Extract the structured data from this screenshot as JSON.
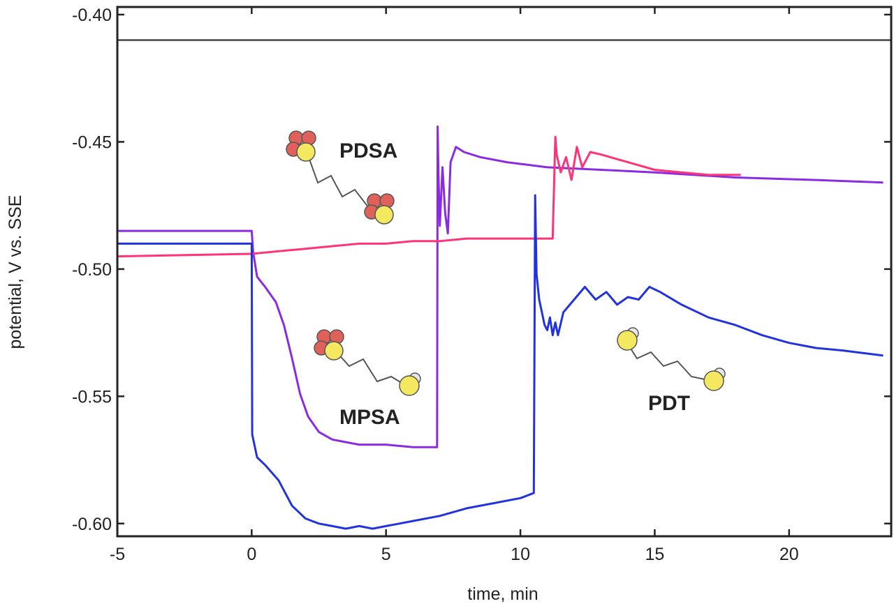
{
  "chart_data": {
    "type": "line",
    "xlabel": "time, min",
    "ylabel": "potential, V vs. SSE",
    "xlim": [
      -5,
      23.8
    ],
    "ylim": [
      -0.605,
      -0.397
    ],
    "xticks": [
      "-5",
      "0",
      "5",
      "10",
      "15",
      "20"
    ],
    "yticks": [
      "-0.40",
      "-0.45",
      "-0.50",
      "-0.55",
      "-0.60"
    ],
    "grid": false,
    "reference_line": {
      "y": -0.41,
      "color": "#444444"
    },
    "annotations": [
      "PDSA",
      "MPSA",
      "PDT"
    ],
    "colors": {
      "pdsa": "#8a2be2",
      "mpsa": "#ff3377",
      "pdt": "#2233dd",
      "sulfur": "#f3e860",
      "oxygen": "#e0605a"
    },
    "series": [
      {
        "color": "#8a2be2",
        "x": [
          -5,
          0,
          0.05,
          0.2,
          0.5,
          0.9,
          1.2,
          1.5,
          1.8,
          2.1,
          2.5,
          3,
          3.5,
          4,
          5,
          6,
          6.9,
          6.92,
          6.95,
          7.0,
          7.1,
          7.2,
          7.3,
          7.4,
          7.6,
          7.9,
          8.5,
          9.5,
          11,
          13,
          15,
          18,
          21,
          23.5
        ],
        "y": [
          -0.485,
          -0.485,
          -0.493,
          -0.503,
          -0.507,
          -0.513,
          -0.522,
          -0.535,
          -0.549,
          -0.558,
          -0.564,
          -0.567,
          -0.568,
          -0.569,
          -0.569,
          -0.57,
          -0.57,
          -0.444,
          -0.462,
          -0.483,
          -0.46,
          -0.478,
          -0.486,
          -0.458,
          -0.452,
          -0.454,
          -0.456,
          -0.458,
          -0.46,
          -0.461,
          -0.462,
          -0.464,
          -0.465,
          -0.466
        ]
      },
      {
        "color": "#ff3377",
        "x": [
          -5,
          0,
          1,
          2,
          3,
          4,
          5,
          6,
          7,
          8,
          9,
          10,
          11.2,
          11.3,
          11.35,
          11.5,
          11.7,
          11.9,
          12.1,
          12.3,
          12.6,
          13,
          14,
          15,
          16,
          17,
          18.2
        ],
        "y": [
          -0.495,
          -0.494,
          -0.493,
          -0.492,
          -0.491,
          -0.49,
          -0.49,
          -0.489,
          -0.489,
          -0.488,
          -0.488,
          -0.488,
          -0.488,
          -0.448,
          -0.455,
          -0.462,
          -0.456,
          -0.465,
          -0.452,
          -0.46,
          -0.454,
          -0.455,
          -0.458,
          -0.461,
          -0.462,
          -0.463,
          -0.463
        ]
      },
      {
        "color": "#2233dd",
        "x": [
          -5,
          0,
          0.02,
          0.2,
          0.5,
          1,
          1.5,
          2,
          2.5,
          3,
          3.5,
          4,
          4.5,
          5,
          5.5,
          6,
          7,
          8,
          9,
          10,
          10.5,
          10.55,
          10.6,
          10.7,
          10.8,
          10.9,
          11,
          11.1,
          11.2,
          11.3,
          11.4,
          11.6,
          12,
          12.4,
          12.8,
          13.2,
          13.6,
          14,
          14.4,
          14.8,
          15.2,
          16,
          17,
          18,
          19,
          20,
          21,
          22,
          23.5
        ],
        "y": [
          -0.49,
          -0.49,
          -0.565,
          -0.574,
          -0.577,
          -0.583,
          -0.593,
          -0.598,
          -0.6,
          -0.601,
          -0.602,
          -0.601,
          -0.602,
          -0.601,
          -0.6,
          -0.599,
          -0.597,
          -0.594,
          -0.592,
          -0.59,
          -0.588,
          -0.471,
          -0.502,
          -0.512,
          -0.517,
          -0.522,
          -0.524,
          -0.519,
          -0.526,
          -0.521,
          -0.526,
          -0.517,
          -0.512,
          -0.507,
          -0.512,
          -0.509,
          -0.514,
          -0.511,
          -0.512,
          -0.507,
          -0.509,
          -0.514,
          -0.519,
          -0.522,
          -0.526,
          -0.529,
          -0.531,
          -0.532,
          -0.534
        ]
      }
    ]
  }
}
